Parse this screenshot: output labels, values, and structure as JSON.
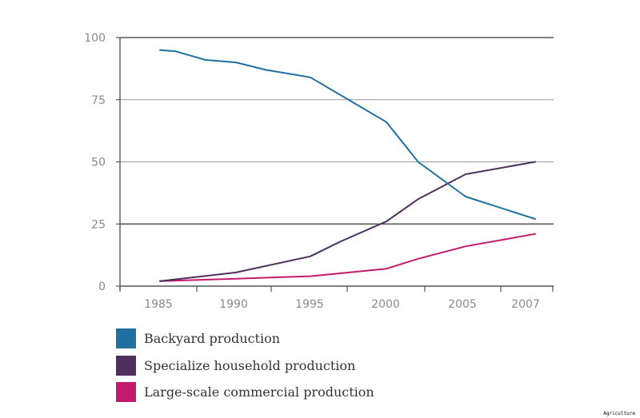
{
  "chart_data": {
    "type": "line",
    "title": "",
    "xlabel": "",
    "ylabel": "",
    "x_ticks": [
      "1985",
      "1990",
      "1995",
      "2000",
      "2005",
      "2007"
    ],
    "y_ticks": [
      0,
      25,
      50,
      75,
      100
    ],
    "ylim": [
      0,
      100
    ],
    "grid": true,
    "legend_position": "bottom-left",
    "series": [
      {
        "name": "Backyard production",
        "color": "#1f6fa0",
        "x": [
          1985,
          1986,
          1988,
          1989,
          1990,
          1992,
          1995,
          2000,
          2002,
          2005,
          2007
        ],
        "y": [
          95,
          94.5,
          91,
          90.5,
          90,
          87,
          84,
          66,
          50,
          36,
          27
        ]
      },
      {
        "name": "Specialize household production",
        "color": "#4f2f5e",
        "x": [
          1985,
          1990,
          1995,
          1997,
          2000,
          2002,
          2005,
          2007
        ],
        "y": [
          2,
          5.5,
          12,
          18,
          26,
          35,
          45,
          50
        ]
      },
      {
        "name": "Large-scale commercial production",
        "color": "#c21a6c",
        "x": [
          1985,
          1990,
          1995,
          2000,
          2002,
          2005,
          2007
        ],
        "y": [
          2,
          3,
          4,
          7,
          11,
          16,
          21
        ]
      }
    ]
  },
  "caption": "Agriculture"
}
